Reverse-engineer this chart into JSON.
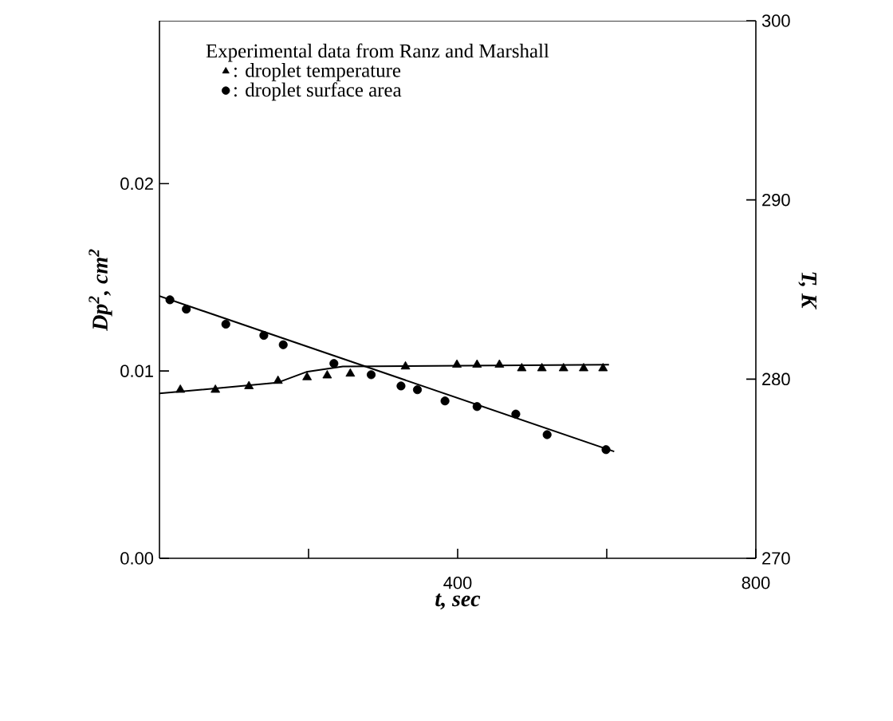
{
  "chart_data": {
    "type": "scatter",
    "xlabel": "t, sec",
    "ylabel": "Dp$^{2}$, cm$^{2}$",
    "y2label": "T, K",
    "legend_title": "Experimental data from Ranz and Marshall",
    "legend": "top left",
    "xlim": [
      0,
      800
    ],
    "xticks": [
      {
        "value": 200,
        "label": null
      },
      400,
      {
        "value": 600,
        "label": null
      },
      800
    ],
    "ylim": [
      0,
      0.0287
    ],
    "yticks": [
      {
        "value": 0,
        "label": "0.00"
      },
      {
        "value": 0.01,
        "label": "0.01"
      },
      {
        "value": 0.02,
        "label": "0.02"
      }
    ],
    "y2lim": [
      270,
      300
    ],
    "y2ticks": [
      270,
      280,
      290,
      300
    ],
    "series": [
      {
        "name": ": droplet temperature",
        "marker": "triangle",
        "axis": "y2",
        "color": "#000000",
        "x": [
          28,
          75,
          120,
          159,
          198,
          225,
          256,
          330,
          399,
          426,
          456,
          486,
          513,
          542,
          569,
          595
        ],
        "values": [
          279.4,
          279.4,
          279.6,
          279.9,
          280.1,
          280.2,
          280.3,
          280.7,
          280.8,
          280.8,
          280.8,
          280.6,
          280.6,
          280.6,
          280.6,
          280.6
        ]
      },
      {
        "name": ": droplet surface area",
        "marker": "circle",
        "color": "#000000",
        "x": [
          14,
          36,
          89,
          140,
          166,
          234,
          284,
          324,
          346,
          383,
          426,
          478,
          520,
          599
        ],
        "values": [
          0.0138,
          0.0133,
          0.0125,
          0.0119,
          0.0114,
          0.0104,
          0.0098,
          0.0092,
          0.009,
          0.0084,
          0.0081,
          0.0077,
          0.0066,
          0.0058
        ]
      },
      {
        "type": "line",
        "axis": "y2",
        "color": "#000000",
        "x": [
          0,
          158,
          197,
          246,
          603
        ],
        "values": [
          279.2,
          279.8,
          280.4,
          280.7,
          280.8
        ]
      },
      {
        "type": "line",
        "color": "#000000",
        "x": [
          0,
          610
        ],
        "values": [
          0.014,
          0.0057
        ]
      }
    ]
  }
}
